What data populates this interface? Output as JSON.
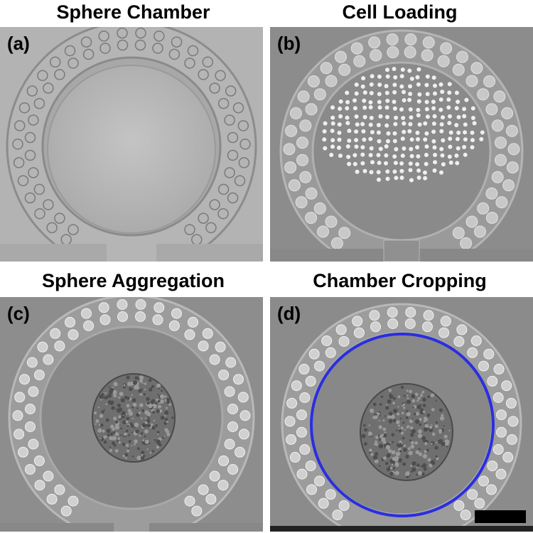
{
  "panels": [
    {
      "title": "Sphere Chamber",
      "letter": "(a)"
    },
    {
      "title": "Cell Loading",
      "letter": "(b)"
    },
    {
      "title": "Sphere Aggregation",
      "letter": "(c)"
    },
    {
      "title": "Chamber Cropping",
      "letter": "(d)"
    }
  ],
  "colors": {
    "crop_circle": "#2a2ee0",
    "scale_bar": "#000000",
    "background_a": "#b8b8b8",
    "background_bcd": "#8a8a8a"
  },
  "icons": [
    "scale-bar"
  ]
}
